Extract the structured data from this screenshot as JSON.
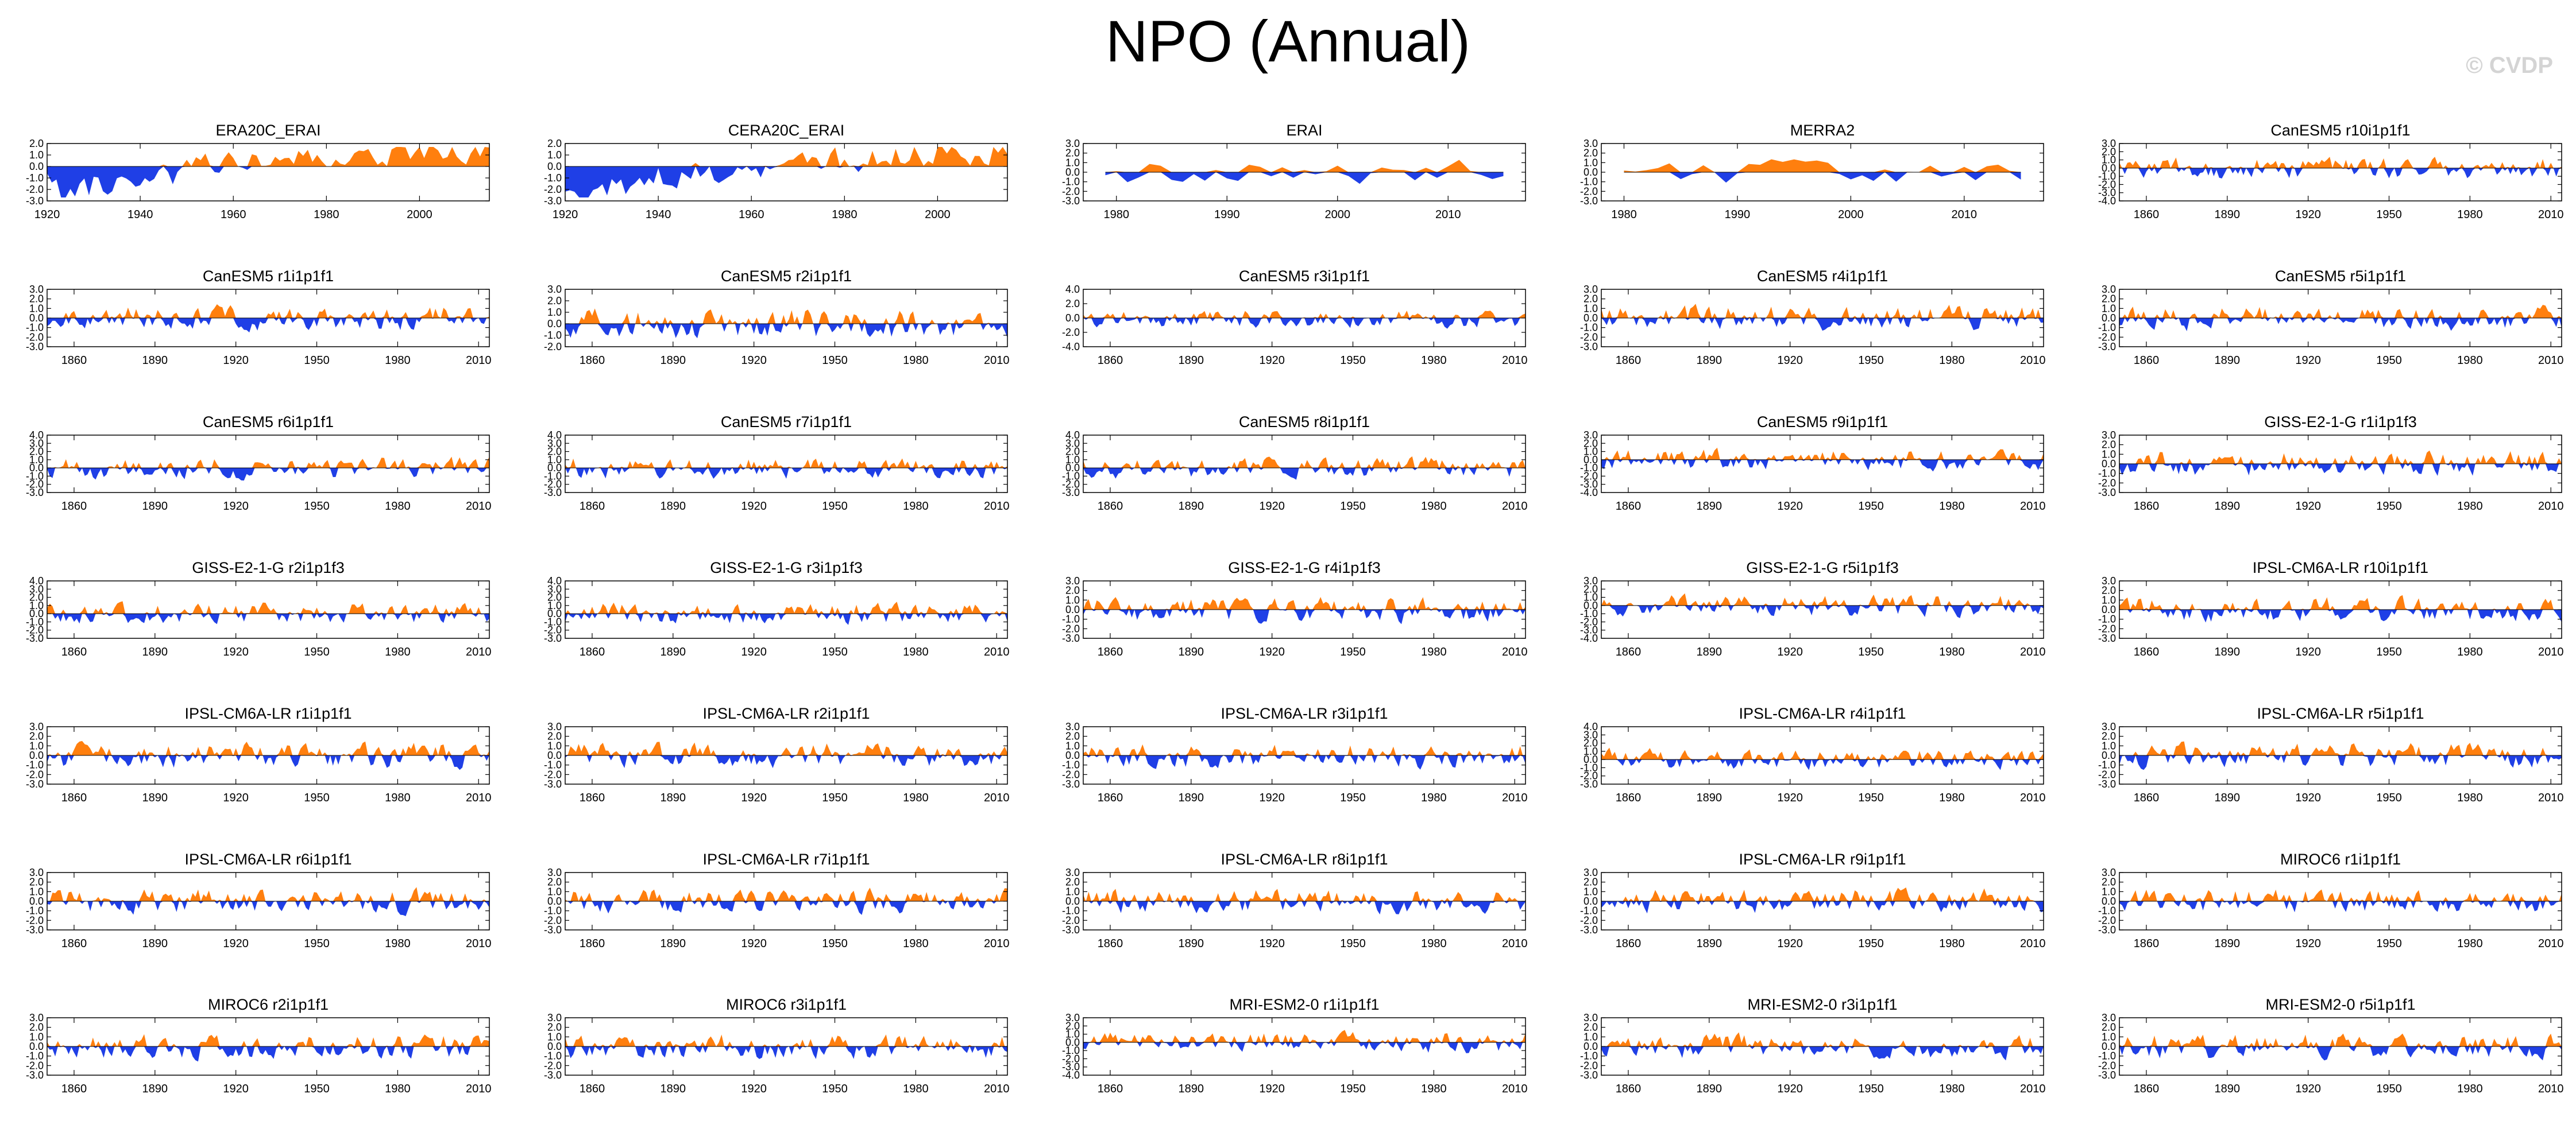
{
  "title": "NPO (Annual)",
  "watermark": "© CVDP",
  "colors": {
    "positive": "#ff7f0e",
    "negative": "#1f3fe6",
    "axis": "#000000"
  },
  "chart_data": [
    {
      "type": "area",
      "title": "ERA20C_ERAI",
      "xlim": [
        1920,
        2015
      ],
      "ylim": [
        -3.0,
        2.0
      ],
      "yticks": [
        "2.0",
        "1.0",
        "0.0",
        "-1.0",
        "-2.0",
        "-3.0"
      ],
      "xticks": [
        1920,
        1940,
        1960,
        1980,
        2000
      ],
      "years": [
        1920,
        2015
      ],
      "seed": 11,
      "trend": 1.5
    },
    {
      "type": "area",
      "title": "CERA20C_ERAI",
      "xlim": [
        1920,
        2015
      ],
      "ylim": [
        -3.0,
        2.0
      ],
      "yticks": [
        "2.0",
        "1.0",
        "0.0",
        "-1.0",
        "-2.0",
        "-3.0"
      ],
      "xticks": [
        1920,
        1940,
        1960,
        1980,
        2000
      ],
      "years": [
        1920,
        2015
      ],
      "seed": 12,
      "trend": 1.4
    },
    {
      "type": "area",
      "title": "ERAI",
      "xlim": [
        1977,
        2017
      ],
      "ylim": [
        -3.0,
        3.0
      ],
      "yticks": [
        "3.0",
        "2.0",
        "1.0",
        "0.0",
        "-1.0",
        "-2.0",
        "-3.0"
      ],
      "xticks": [
        1980,
        1990,
        2000,
        2010
      ],
      "years": [
        1979,
        2015
      ],
      "seed": 13,
      "trend": 0
    },
    {
      "type": "area",
      "title": "MERRA2",
      "xlim": [
        1978,
        2017
      ],
      "ylim": [
        -3.0,
        3.0
      ],
      "yticks": [
        "3.0",
        "2.0",
        "1.0",
        "0.0",
        "-1.0",
        "-2.0",
        "-3.0"
      ],
      "xticks": [
        1980,
        1990,
        2000,
        2010
      ],
      "years": [
        1980,
        2015
      ],
      "seed": 14,
      "trend": 0
    },
    {
      "type": "area",
      "title": "CanESM5 r10i1p1f1",
      "xlim": [
        1850,
        2014
      ],
      "ylim": [
        -4.0,
        3.0
      ],
      "yticks": [
        "3.0",
        "2.0",
        "1.0",
        "0.0",
        "-1.0",
        "-2.0",
        "-3.0",
        "-4.0"
      ],
      "xticks": [
        1860,
        1890,
        1920,
        1950,
        1980,
        2010
      ],
      "years": [
        1850,
        2014
      ],
      "seed": 15,
      "trend": 0
    },
    {
      "type": "area",
      "title": "CanESM5 r1i1p1f1",
      "xlim": [
        1850,
        2014
      ],
      "ylim": [
        -3.0,
        3.0
      ],
      "yticks": [
        "3.0",
        "2.0",
        "1.0",
        "0.0",
        "-1.0",
        "-2.0",
        "-3.0"
      ],
      "xticks": [
        1860,
        1890,
        1920,
        1950,
        1980,
        2010
      ],
      "years": [
        1850,
        2014
      ],
      "seed": 21,
      "trend": 0
    },
    {
      "type": "area",
      "title": "CanESM5 r2i1p1f1",
      "xlim": [
        1850,
        2014
      ],
      "ylim": [
        -2.0,
        3.0
      ],
      "yticks": [
        "3.0",
        "2.0",
        "1.0",
        "0.0",
        "-1.0",
        "-2.0"
      ],
      "xticks": [
        1860,
        1890,
        1920,
        1950,
        1980,
        2010
      ],
      "years": [
        1850,
        2014
      ],
      "seed": 22,
      "trend": 0
    },
    {
      "type": "area",
      "title": "CanESM5 r3i1p1f1",
      "xlim": [
        1850,
        2014
      ],
      "ylim": [
        -4.0,
        4.0
      ],
      "yticks": [
        "4.0",
        "2.0",
        "0.0",
        "-2.0",
        "-4.0"
      ],
      "xticks": [
        1860,
        1890,
        1920,
        1950,
        1980,
        2010
      ],
      "years": [
        1850,
        2014
      ],
      "seed": 23,
      "trend": 0
    },
    {
      "type": "area",
      "title": "CanESM5 r4i1p1f1",
      "xlim": [
        1850,
        2014
      ],
      "ylim": [
        -3.0,
        3.0
      ],
      "yticks": [
        "3.0",
        "2.0",
        "1.0",
        "0.0",
        "-1.0",
        "-2.0",
        "-3.0"
      ],
      "xticks": [
        1860,
        1890,
        1920,
        1950,
        1980,
        2010
      ],
      "years": [
        1850,
        2014
      ],
      "seed": 24,
      "trend": 0
    },
    {
      "type": "area",
      "title": "CanESM5 r5i1p1f1",
      "xlim": [
        1850,
        2014
      ],
      "ylim": [
        -3.0,
        3.0
      ],
      "yticks": [
        "3.0",
        "2.0",
        "1.0",
        "0.0",
        "-1.0",
        "-2.0",
        "-3.0"
      ],
      "xticks": [
        1860,
        1890,
        1920,
        1950,
        1980,
        2010
      ],
      "years": [
        1850,
        2014
      ],
      "seed": 25,
      "trend": 0
    },
    {
      "type": "area",
      "title": "CanESM5 r6i1p1f1",
      "xlim": [
        1850,
        2014
      ],
      "ylim": [
        -3.0,
        4.0
      ],
      "yticks": [
        "4.0",
        "3.0",
        "2.0",
        "1.0",
        "0.0",
        "-1.0",
        "-2.0",
        "-3.0"
      ],
      "xticks": [
        1860,
        1890,
        1920,
        1950,
        1980,
        2010
      ],
      "years": [
        1850,
        2014
      ],
      "seed": 31,
      "trend": 0
    },
    {
      "type": "area",
      "title": "CanESM5 r7i1p1f1",
      "xlim": [
        1850,
        2014
      ],
      "ylim": [
        -3.0,
        4.0
      ],
      "yticks": [
        "4.0",
        "3.0",
        "2.0",
        "1.0",
        "0.0",
        "-1.0",
        "-2.0",
        "-3.0"
      ],
      "xticks": [
        1860,
        1890,
        1920,
        1950,
        1980,
        2010
      ],
      "years": [
        1850,
        2014
      ],
      "seed": 32,
      "trend": 0
    },
    {
      "type": "area",
      "title": "CanESM5 r8i1p1f1",
      "xlim": [
        1850,
        2014
      ],
      "ylim": [
        -3.0,
        4.0
      ],
      "yticks": [
        "4.0",
        "3.0",
        "2.0",
        "1.0",
        "0.0",
        "-1.0",
        "-2.0",
        "-3.0"
      ],
      "xticks": [
        1860,
        1890,
        1920,
        1950,
        1980,
        2010
      ],
      "years": [
        1850,
        2014
      ],
      "seed": 33,
      "trend": 0
    },
    {
      "type": "area",
      "title": "CanESM5 r9i1p1f1",
      "xlim": [
        1850,
        2014
      ],
      "ylim": [
        -4.0,
        3.0
      ],
      "yticks": [
        "3.0",
        "2.0",
        "1.0",
        "0.0",
        "-1.0",
        "-2.0",
        "-3.0",
        "-4.0"
      ],
      "xticks": [
        1860,
        1890,
        1920,
        1950,
        1980,
        2010
      ],
      "years": [
        1850,
        2014
      ],
      "seed": 34,
      "trend": 0
    },
    {
      "type": "area",
      "title": "GISS-E2-1-G r1i1p1f3",
      "xlim": [
        1850,
        2014
      ],
      "ylim": [
        -3.0,
        3.0
      ],
      "yticks": [
        "3.0",
        "2.0",
        "1.0",
        "0.0",
        "-1.0",
        "-2.0",
        "-3.0"
      ],
      "xticks": [
        1860,
        1890,
        1920,
        1950,
        1980,
        2010
      ],
      "years": [
        1850,
        2014
      ],
      "seed": 35,
      "trend": 0
    },
    {
      "type": "area",
      "title": "GISS-E2-1-G r2i1p1f3",
      "xlim": [
        1850,
        2014
      ],
      "ylim": [
        -3.0,
        4.0
      ],
      "yticks": [
        "4.0",
        "3.0",
        "2.0",
        "1.0",
        "0.0",
        "-1.0",
        "-2.0",
        "-3.0"
      ],
      "xticks": [
        1860,
        1890,
        1920,
        1950,
        1980,
        2010
      ],
      "years": [
        1850,
        2014
      ],
      "seed": 41,
      "trend": 0
    },
    {
      "type": "area",
      "title": "GISS-E2-1-G r3i1p1f3",
      "xlim": [
        1850,
        2014
      ],
      "ylim": [
        -3.0,
        4.0
      ],
      "yticks": [
        "4.0",
        "3.0",
        "2.0",
        "1.0",
        "0.0",
        "-1.0",
        "-2.0",
        "-3.0"
      ],
      "xticks": [
        1860,
        1890,
        1920,
        1950,
        1980,
        2010
      ],
      "years": [
        1850,
        2014
      ],
      "seed": 42,
      "trend": 0
    },
    {
      "type": "area",
      "title": "GISS-E2-1-G r4i1p1f3",
      "xlim": [
        1850,
        2014
      ],
      "ylim": [
        -3.0,
        3.0
      ],
      "yticks": [
        "3.0",
        "2.0",
        "1.0",
        "0.0",
        "-1.0",
        "-2.0",
        "-3.0"
      ],
      "xticks": [
        1860,
        1890,
        1920,
        1950,
        1980,
        2010
      ],
      "years": [
        1850,
        2014
      ],
      "seed": 43,
      "trend": 0
    },
    {
      "type": "area",
      "title": "GISS-E2-1-G r5i1p1f3",
      "xlim": [
        1850,
        2014
      ],
      "ylim": [
        -4.0,
        3.0
      ],
      "yticks": [
        "3.0",
        "2.0",
        "1.0",
        "0.0",
        "-1.0",
        "-2.0",
        "-3.0",
        "-4.0"
      ],
      "xticks": [
        1860,
        1890,
        1920,
        1950,
        1980,
        2010
      ],
      "years": [
        1850,
        2014
      ],
      "seed": 44,
      "trend": 0
    },
    {
      "type": "area",
      "title": "IPSL-CM6A-LR r10i1p1f1",
      "xlim": [
        1850,
        2014
      ],
      "ylim": [
        -3.0,
        3.0
      ],
      "yticks": [
        "3.0",
        "2.0",
        "1.0",
        "0.0",
        "-1.0",
        "-2.0",
        "-3.0"
      ],
      "xticks": [
        1860,
        1890,
        1920,
        1950,
        1980,
        2010
      ],
      "years": [
        1850,
        2014
      ],
      "seed": 45,
      "trend": 0
    },
    {
      "type": "area",
      "title": "IPSL-CM6A-LR r1i1p1f1",
      "xlim": [
        1850,
        2014
      ],
      "ylim": [
        -3.0,
        3.0
      ],
      "yticks": [
        "3.0",
        "2.0",
        "1.0",
        "0.0",
        "-1.0",
        "-2.0",
        "-3.0"
      ],
      "xticks": [
        1860,
        1890,
        1920,
        1950,
        1980,
        2010
      ],
      "years": [
        1850,
        2014
      ],
      "seed": 51,
      "trend": 0
    },
    {
      "type": "area",
      "title": "IPSL-CM6A-LR r2i1p1f1",
      "xlim": [
        1850,
        2014
      ],
      "ylim": [
        -3.0,
        3.0
      ],
      "yticks": [
        "3.0",
        "2.0",
        "1.0",
        "0.0",
        "-1.0",
        "-2.0",
        "-3.0"
      ],
      "xticks": [
        1860,
        1890,
        1920,
        1950,
        1980,
        2010
      ],
      "years": [
        1850,
        2014
      ],
      "seed": 52,
      "trend": 0
    },
    {
      "type": "area",
      "title": "IPSL-CM6A-LR r3i1p1f1",
      "xlim": [
        1850,
        2014
      ],
      "ylim": [
        -3.0,
        3.0
      ],
      "yticks": [
        "3.0",
        "2.0",
        "1.0",
        "0.0",
        "-1.0",
        "-2.0",
        "-3.0"
      ],
      "xticks": [
        1860,
        1890,
        1920,
        1950,
        1980,
        2010
      ],
      "years": [
        1850,
        2014
      ],
      "seed": 53,
      "trend": 0
    },
    {
      "type": "area",
      "title": "IPSL-CM6A-LR r4i1p1f1",
      "xlim": [
        1850,
        2014
      ],
      "ylim": [
        -3.0,
        4.0
      ],
      "yticks": [
        "4.0",
        "3.0",
        "2.0",
        "1.0",
        "0.0",
        "-1.0",
        "-2.0",
        "-3.0"
      ],
      "xticks": [
        1860,
        1890,
        1920,
        1950,
        1980,
        2010
      ],
      "years": [
        1850,
        2014
      ],
      "seed": 54,
      "trend": 0
    },
    {
      "type": "area",
      "title": "IPSL-CM6A-LR r5i1p1f1",
      "xlim": [
        1850,
        2014
      ],
      "ylim": [
        -3.0,
        3.0
      ],
      "yticks": [
        "3.0",
        "2.0",
        "1.0",
        "0.0",
        "-1.0",
        "-2.0",
        "-3.0"
      ],
      "xticks": [
        1860,
        1890,
        1920,
        1950,
        1980,
        2010
      ],
      "years": [
        1850,
        2014
      ],
      "seed": 55,
      "trend": 0
    },
    {
      "type": "area",
      "title": "IPSL-CM6A-LR r6i1p1f1",
      "xlim": [
        1850,
        2014
      ],
      "ylim": [
        -3.0,
        3.0
      ],
      "yticks": [
        "3.0",
        "2.0",
        "1.0",
        "0.0",
        "-1.0",
        "-2.0",
        "-3.0"
      ],
      "xticks": [
        1860,
        1890,
        1920,
        1950,
        1980,
        2010
      ],
      "years": [
        1850,
        2014
      ],
      "seed": 61,
      "trend": 0
    },
    {
      "type": "area",
      "title": "IPSL-CM6A-LR r7i1p1f1",
      "xlim": [
        1850,
        2014
      ],
      "ylim": [
        -3.0,
        3.0
      ],
      "yticks": [
        "3.0",
        "2.0",
        "1.0",
        "0.0",
        "-1.0",
        "-2.0",
        "-3.0"
      ],
      "xticks": [
        1860,
        1890,
        1920,
        1950,
        1980,
        2010
      ],
      "years": [
        1850,
        2014
      ],
      "seed": 62,
      "trend": 0
    },
    {
      "type": "area",
      "title": "IPSL-CM6A-LR r8i1p1f1",
      "xlim": [
        1850,
        2014
      ],
      "ylim": [
        -3.0,
        3.0
      ],
      "yticks": [
        "3.0",
        "2.0",
        "1.0",
        "0.0",
        "-1.0",
        "-2.0",
        "-3.0"
      ],
      "xticks": [
        1860,
        1890,
        1920,
        1950,
        1980,
        2010
      ],
      "years": [
        1850,
        2014
      ],
      "seed": 63,
      "trend": 0
    },
    {
      "type": "area",
      "title": "IPSL-CM6A-LR r9i1p1f1",
      "xlim": [
        1850,
        2014
      ],
      "ylim": [
        -3.0,
        3.0
      ],
      "yticks": [
        "3.0",
        "2.0",
        "1.0",
        "0.0",
        "-1.0",
        "-2.0",
        "-3.0"
      ],
      "xticks": [
        1860,
        1890,
        1920,
        1950,
        1980,
        2010
      ],
      "years": [
        1850,
        2014
      ],
      "seed": 64,
      "trend": 0
    },
    {
      "type": "area",
      "title": "MIROC6 r1i1p1f1",
      "xlim": [
        1850,
        2014
      ],
      "ylim": [
        -3.0,
        3.0
      ],
      "yticks": [
        "3.0",
        "2.0",
        "1.0",
        "0.0",
        "-1.0",
        "-2.0",
        "-3.0"
      ],
      "xticks": [
        1860,
        1890,
        1920,
        1950,
        1980,
        2010
      ],
      "years": [
        1850,
        2014
      ],
      "seed": 65,
      "trend": 0
    },
    {
      "type": "area",
      "title": "MIROC6 r2i1p1f1",
      "xlim": [
        1850,
        2014
      ],
      "ylim": [
        -3.0,
        3.0
      ],
      "yticks": [
        "3.0",
        "2.0",
        "1.0",
        "0.0",
        "-1.0",
        "-2.0",
        "-3.0"
      ],
      "xticks": [
        1860,
        1890,
        1920,
        1950,
        1980,
        2010
      ],
      "years": [
        1850,
        2014
      ],
      "seed": 71,
      "trend": 0
    },
    {
      "type": "area",
      "title": "MIROC6 r3i1p1f1",
      "xlim": [
        1850,
        2014
      ],
      "ylim": [
        -3.0,
        3.0
      ],
      "yticks": [
        "3.0",
        "2.0",
        "1.0",
        "0.0",
        "-1.0",
        "-2.0",
        "-3.0"
      ],
      "xticks": [
        1860,
        1890,
        1920,
        1950,
        1980,
        2010
      ],
      "years": [
        1850,
        2014
      ],
      "seed": 72,
      "trend": 0
    },
    {
      "type": "area",
      "title": "MRI-ESM2-0 r1i1p1f1",
      "xlim": [
        1850,
        2014
      ],
      "ylim": [
        -4.0,
        3.0
      ],
      "yticks": [
        "3.0",
        "2.0",
        "1.0",
        "0.0",
        "-1.0",
        "-2.0",
        "-3.0",
        "-4.0"
      ],
      "xticks": [
        1860,
        1890,
        1920,
        1950,
        1980,
        2010
      ],
      "years": [
        1850,
        2014
      ],
      "seed": 73,
      "trend": 0
    },
    {
      "type": "area",
      "title": "MRI-ESM2-0 r3i1p1f1",
      "xlim": [
        1850,
        2014
      ],
      "ylim": [
        -3.0,
        3.0
      ],
      "yticks": [
        "3.0",
        "2.0",
        "1.0",
        "0.0",
        "-1.0",
        "-2.0",
        "-3.0"
      ],
      "xticks": [
        1860,
        1890,
        1920,
        1950,
        1980,
        2010
      ],
      "years": [
        1850,
        2014
      ],
      "seed": 74,
      "trend": 0
    },
    {
      "type": "area",
      "title": "MRI-ESM2-0 r5i1p1f1",
      "xlim": [
        1850,
        2014
      ],
      "ylim": [
        -3.0,
        3.0
      ],
      "yticks": [
        "3.0",
        "2.0",
        "1.0",
        "0.0",
        "-1.0",
        "-2.0",
        "-3.0"
      ],
      "xticks": [
        1860,
        1890,
        1920,
        1950,
        1980,
        2010
      ],
      "years": [
        1850,
        2014
      ],
      "seed": 75,
      "trend": 0
    }
  ]
}
